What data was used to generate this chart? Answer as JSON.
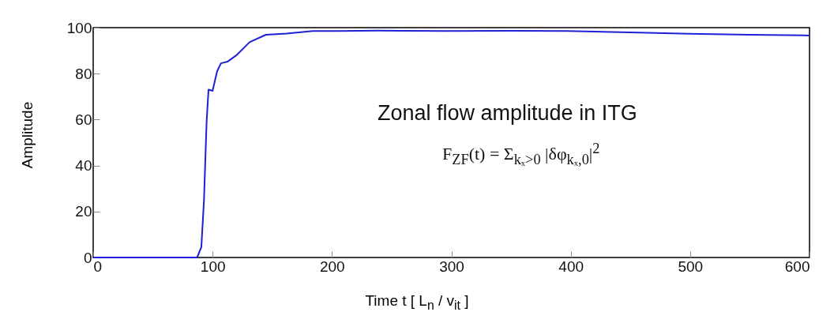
{
  "chart_data": {
    "type": "line",
    "xlabel": "Time t [ L$_{n}$ / v$_{it}$ ]",
    "ylabel": "Amplitude",
    "annotations": [
      "Zonal flow amplitude in ITG",
      "F$_{ZF}$(t) = Σ$_{kₓ>0}$ |δφ$_{kₓ,0}$|$^{2}$"
    ],
    "x": [
      0,
      87,
      90.6,
      92.8,
      95,
      96.6,
      100,
      103.8,
      107,
      112.5,
      120,
      131,
      144.6,
      162,
      184,
      206,
      239,
      296,
      350,
      397,
      450,
      499,
      550,
      600
    ],
    "series": [
      {
        "color": "#1f1fd6",
        "values": [
          0,
          0,
          4.5,
          25,
          59,
          73,
          72.5,
          81,
          84.5,
          85.2,
          88,
          93.7,
          96.9,
          97.4,
          98.5,
          98.5,
          98.7,
          98.5,
          98.6,
          98.5,
          97.9,
          97.3,
          96.9,
          96.6
        ]
      }
    ],
    "xlim": [
      0,
      600
    ],
    "ylim": [
      0,
      100
    ],
    "xticks": [
      0,
      100,
      200,
      300,
      400,
      500,
      600
    ],
    "yticks": [
      0,
      20,
      40,
      60,
      80,
      100
    ],
    "grid": false
  }
}
